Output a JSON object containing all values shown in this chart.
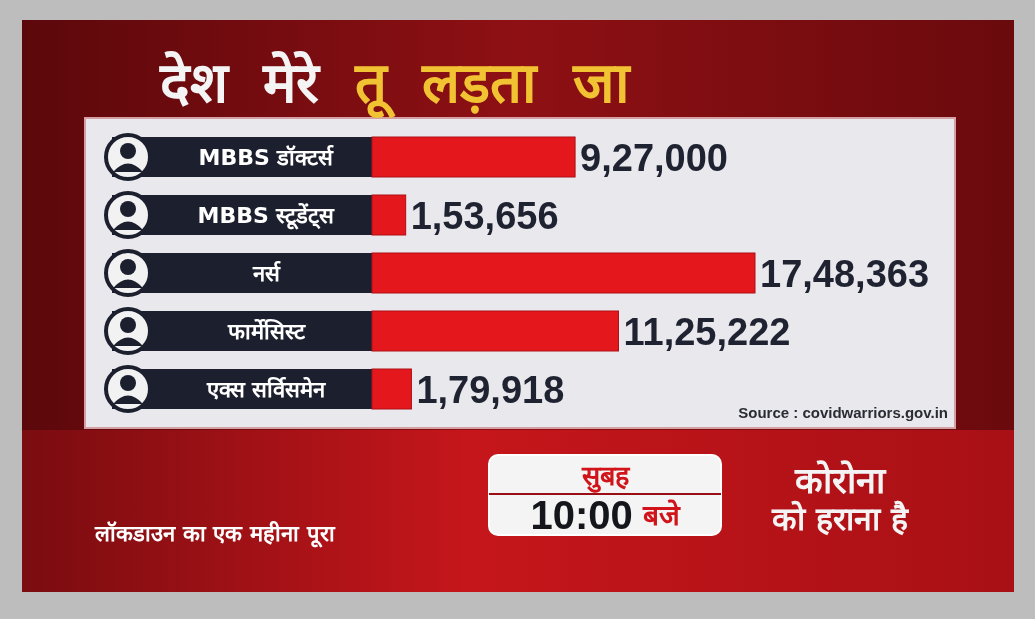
{
  "chart_data": {
    "type": "bar",
    "orientation": "horizontal",
    "title": "देश मेरे तू लड़ता जा",
    "categories": [
      "MBBS डॉक्टर्स",
      "MBBS स्टूडेंट्स",
      "नर्स",
      "फार्मेसिस्ट",
      "एक्स सर्विसमेन"
    ],
    "values": [
      927000,
      153656,
      1748363,
      1125222,
      179918
    ],
    "color": "#e3171c",
    "value_labels": [
      "9,27,000",
      "1,53,656",
      "17,48,363",
      "11,25,222",
      "1,79,918"
    ],
    "annotations": [
      "Source : covidwarriors.gov.in",
      "लॉकडाउन का एक महीना पूरा",
      "सुबह 10:00 बजे",
      "कोरोना को हराना है"
    ]
  }
}
